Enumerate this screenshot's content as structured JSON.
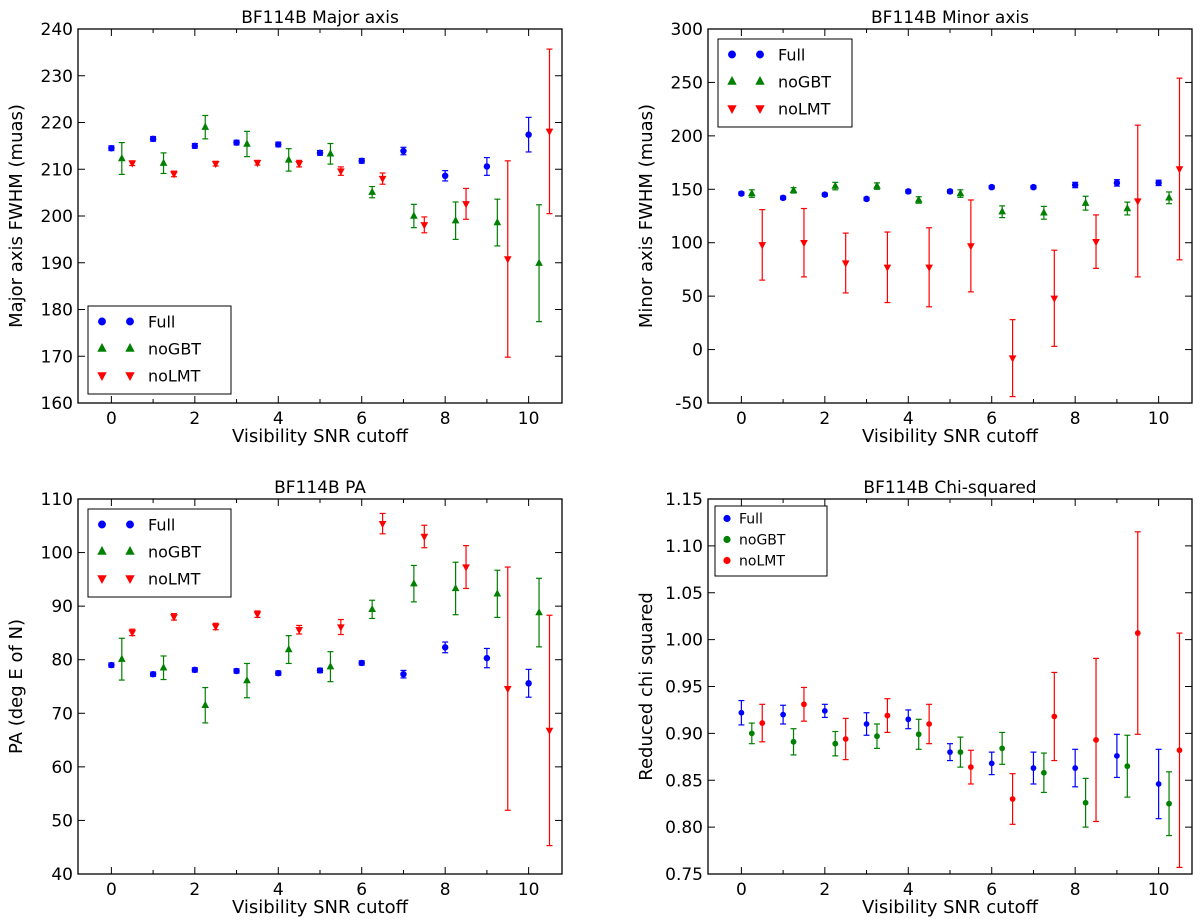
{
  "chart_data": [
    {
      "type": "scatter",
      "title": "BF114B Major axis",
      "xlabel": "Visibility SNR cutoff",
      "ylabel": "Major axis FWHM (muas)",
      "xlim": [
        -0.8,
        10.8
      ],
      "ylim": [
        160,
        240
      ],
      "xticks": [
        0,
        2,
        4,
        6,
        8,
        10
      ],
      "yticks": [
        160,
        170,
        180,
        190,
        200,
        210,
        220,
        230,
        240
      ],
      "legend_position": "lower-left",
      "series": [
        {
          "name": "Full",
          "color": "#0000ff",
          "marker": "circle",
          "x": [
            0,
            1,
            2,
            3,
            4,
            5,
            6,
            7,
            8,
            9,
            10
          ],
          "y": [
            214.5,
            216.5,
            215.0,
            215.7,
            215.3,
            213.5,
            211.8,
            213.9,
            208.6,
            210.6,
            217.4
          ],
          "err": [
            0.5,
            0.5,
            0.5,
            0.5,
            0.5,
            0.5,
            0.5,
            0.8,
            1.1,
            1.9,
            3.7
          ]
        },
        {
          "name": "noGBT",
          "color": "#008000",
          "marker": "triangle-up",
          "x": [
            0.25,
            1.25,
            2.25,
            3.25,
            4.25,
            5.25,
            6.25,
            7.25,
            8.25,
            9.25,
            10.25
          ],
          "y": [
            212.3,
            211.3,
            219.0,
            215.4,
            212.0,
            213.3,
            205.1,
            200.0,
            199.0,
            198.6,
            189.9
          ],
          "err": [
            3.4,
            2.2,
            2.5,
            2.7,
            2.4,
            2.2,
            1.2,
            2.5,
            4.0,
            5.0,
            12.5
          ]
        },
        {
          "name": "noLMT",
          "color": "#ff0000",
          "marker": "triangle-down",
          "x": [
            0.5,
            1.5,
            2.5,
            3.5,
            4.5,
            5.5,
            6.5,
            7.5,
            8.5,
            9.5,
            10.5
          ],
          "y": [
            211.3,
            209.0,
            211.2,
            211.4,
            211.2,
            209.6,
            208.0,
            198.1,
            202.6,
            190.8,
            218.1
          ],
          "err": [
            0.5,
            0.6,
            0.5,
            0.5,
            0.7,
            0.9,
            1.2,
            1.7,
            3.3,
            21.0,
            17.6
          ]
        }
      ]
    },
    {
      "type": "scatter",
      "title": "BF114B Minor axis",
      "xlabel": "Visibility SNR cutoff",
      "ylabel": "Minor axis FWHM (muas)",
      "xlim": [
        -0.8,
        10.8
      ],
      "ylim": [
        -50,
        300
      ],
      "xticks": [
        0,
        2,
        4,
        6,
        8,
        10
      ],
      "yticks": [
        -50,
        0,
        50,
        100,
        150,
        200,
        250,
        300
      ],
      "legend_position": "upper-left",
      "series": [
        {
          "name": "Full",
          "color": "#0000ff",
          "marker": "circle",
          "x": [
            0,
            1,
            2,
            3,
            4,
            5,
            6,
            7,
            8,
            9,
            10
          ],
          "y": [
            146,
            142,
            145,
            141,
            148,
            148,
            152,
            152,
            154,
            156,
            156
          ],
          "err": [
            1.5,
            1.5,
            1.5,
            1.5,
            1.5,
            1.5,
            1.5,
            1.5,
            2.5,
            3.0,
            2.5
          ]
        },
        {
          "name": "noGBT",
          "color": "#008000",
          "marker": "triangle-up",
          "x": [
            0.25,
            1.25,
            2.25,
            3.25,
            4.25,
            5.25,
            6.25,
            7.25,
            8.25,
            9.25,
            10.25
          ],
          "y": [
            146,
            149,
            153,
            153,
            140,
            146,
            129,
            128,
            137,
            132,
            142
          ],
          "err": [
            3.5,
            2.5,
            3.5,
            3.0,
            3.0,
            3.5,
            5.5,
            6.0,
            6.5,
            6.0,
            5.5
          ]
        },
        {
          "name": "noLMT",
          "color": "#ff0000",
          "marker": "triangle-down",
          "x": [
            0.5,
            1.5,
            2.5,
            3.5,
            4.5,
            5.5,
            6.5,
            7.5,
            8.5,
            9.5,
            10.5
          ],
          "y": [
            98,
            100,
            81,
            77,
            77,
            97,
            -8,
            48,
            101,
            139,
            169
          ],
          "err": [
            33,
            32,
            28,
            33,
            37,
            43,
            36,
            45,
            25,
            71,
            85
          ]
        }
      ]
    },
    {
      "type": "scatter",
      "title": "BF114B PA",
      "xlabel": "Visibility SNR cutoff",
      "ylabel": "PA (deg E of N)",
      "xlim": [
        -0.8,
        10.8
      ],
      "ylim": [
        40,
        110
      ],
      "xticks": [
        0,
        2,
        4,
        6,
        8,
        10
      ],
      "yticks": [
        40,
        50,
        60,
        70,
        80,
        90,
        100,
        110
      ],
      "legend_position": "upper-left",
      "series": [
        {
          "name": "Full",
          "color": "#0000ff",
          "marker": "circle",
          "x": [
            0,
            1,
            2,
            3,
            4,
            5,
            6,
            7,
            8,
            9,
            10
          ],
          "y": [
            79.0,
            77.3,
            78.1,
            77.9,
            77.5,
            78.0,
            79.4,
            77.3,
            82.3,
            80.3,
            75.6
          ],
          "err": [
            0.4,
            0.4,
            0.4,
            0.4,
            0.4,
            0.4,
            0.4,
            0.7,
            1.0,
            1.8,
            2.6
          ]
        },
        {
          "name": "noGBT",
          "color": "#008000",
          "marker": "triangle-up",
          "x": [
            0.25,
            1.25,
            2.25,
            3.25,
            4.25,
            5.25,
            6.25,
            7.25,
            8.25,
            9.25,
            10.25
          ],
          "y": [
            80.1,
            78.5,
            71.5,
            76.1,
            81.9,
            78.7,
            89.4,
            94.2,
            93.3,
            92.3,
            88.8
          ],
          "err": [
            3.9,
            2.2,
            3.3,
            3.2,
            2.6,
            2.8,
            1.7,
            3.4,
            4.9,
            4.4,
            6.4
          ]
        },
        {
          "name": "noLMT",
          "color": "#ff0000",
          "marker": "triangle-down",
          "x": [
            0.5,
            1.5,
            2.5,
            3.5,
            4.5,
            5.5,
            6.5,
            7.5,
            8.5,
            9.5,
            10.5
          ],
          "y": [
            85.1,
            88.0,
            86.2,
            88.5,
            85.6,
            86.1,
            105.4,
            103.0,
            97.3,
            74.6,
            66.8
          ],
          "err": [
            0.6,
            0.6,
            0.6,
            0.6,
            0.8,
            1.4,
            1.9,
            2.1,
            4.0,
            22.7,
            21.5
          ]
        }
      ]
    },
    {
      "type": "scatter",
      "title": "BF114B Chi-squared",
      "xlabel": "Visibility SNR cutoff",
      "ylabel": "Reduced chi squared",
      "xlim": [
        -0.8,
        10.8
      ],
      "ylim": [
        0.75,
        1.15
      ],
      "xticks": [
        0,
        2,
        4,
        6,
        8,
        10
      ],
      "yticks": [
        "0.75",
        "0.80",
        "0.85",
        "0.90",
        "0.95",
        "1.00",
        "1.05",
        "1.10",
        "1.15"
      ],
      "legend_position": "upper-left",
      "series": [
        {
          "name": "Full",
          "color": "#0000ff",
          "marker": "circle",
          "x": [
            0,
            1,
            2,
            3,
            4,
            5,
            6,
            7,
            8,
            9,
            10
          ],
          "y": [
            0.922,
            0.92,
            0.924,
            0.91,
            0.915,
            0.88,
            0.868,
            0.863,
            0.863,
            0.876,
            0.846
          ],
          "err": [
            0.013,
            0.01,
            0.007,
            0.012,
            0.01,
            0.009,
            0.012,
            0.017,
            0.02,
            0.023,
            0.037
          ]
        },
        {
          "name": "noGBT",
          "color": "#008000",
          "marker": "circle",
          "x": [
            0.25,
            1.25,
            2.25,
            3.25,
            4.25,
            5.25,
            6.25,
            7.25,
            8.25,
            9.25,
            10.25
          ],
          "y": [
            0.9,
            0.891,
            0.889,
            0.897,
            0.899,
            0.88,
            0.884,
            0.858,
            0.826,
            0.865,
            0.825
          ],
          "err": [
            0.011,
            0.014,
            0.013,
            0.013,
            0.016,
            0.016,
            0.017,
            0.021,
            0.026,
            0.033,
            0.034
          ]
        },
        {
          "name": "noLMT",
          "color": "#ff0000",
          "marker": "circle",
          "x": [
            0.5,
            1.5,
            2.5,
            3.5,
            4.5,
            5.5,
            6.5,
            7.5,
            8.5,
            9.5,
            10.5
          ],
          "y": [
            0.911,
            0.931,
            0.894,
            0.919,
            0.91,
            0.864,
            0.83,
            0.918,
            0.893,
            1.007,
            0.882
          ],
          "err": [
            0.02,
            0.018,
            0.022,
            0.018,
            0.021,
            0.018,
            0.027,
            0.047,
            0.087,
            0.108,
            0.125
          ]
        }
      ]
    }
  ]
}
